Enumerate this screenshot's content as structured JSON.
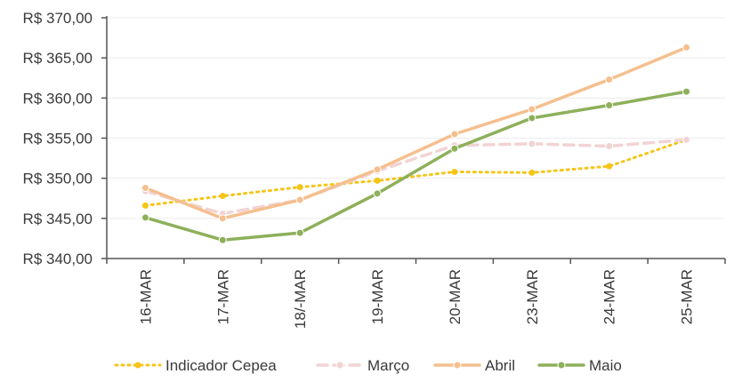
{
  "chart_data": {
    "type": "line",
    "categories": [
      "16-MAR",
      "17-MAR",
      "18/-MAR",
      "19-MAR",
      "20-MAR",
      "23-MAR",
      "24-MAR",
      "25-MAR"
    ],
    "ylim": [
      340,
      370
    ],
    "yticks": [
      340,
      345,
      350,
      355,
      360,
      365,
      370
    ],
    "ytick_labels": [
      "R$ 340,00",
      "R$ 345,00",
      "R$ 350,00",
      "R$ 355,00",
      "R$ 360,00",
      "R$ 365,00",
      "R$ 370,00"
    ],
    "grid": true,
    "legend_position": "bottom",
    "series": [
      {
        "name": "Indicador Cepea",
        "color": "#F5C518",
        "style": "dotted",
        "marker": "dot",
        "values": [
          346.6,
          347.8,
          348.9,
          349.7,
          350.8,
          350.7,
          351.5,
          354.8
        ]
      },
      {
        "name": "Março",
        "color": "#F2D3D3",
        "style": "dashed",
        "marker": "circle",
        "values": [
          348.4,
          345.6,
          347.3,
          350.9,
          354.1,
          354.3,
          354.0,
          354.8
        ]
      },
      {
        "name": "Abril",
        "color": "#F5BF8E",
        "style": "solid",
        "marker": "circle",
        "values": [
          348.8,
          345.0,
          347.3,
          351.1,
          355.5,
          358.6,
          362.3,
          366.3
        ]
      },
      {
        "name": "Maio",
        "color": "#8DB05A",
        "style": "solid",
        "marker": "circle",
        "values": [
          345.1,
          342.3,
          343.2,
          348.1,
          353.7,
          357.5,
          359.1,
          360.8
        ]
      }
    ]
  }
}
